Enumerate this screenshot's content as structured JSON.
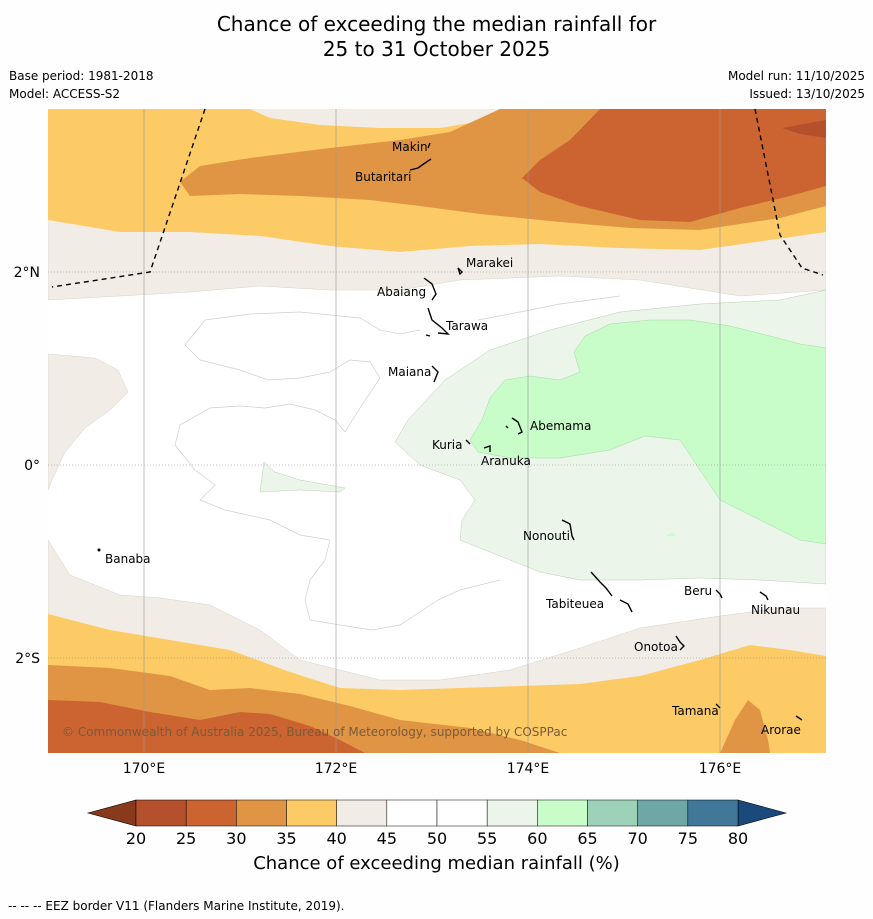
{
  "title": {
    "line1": "Chance of exceeding the median rainfall for",
    "line2": "25 to 31 October 2025"
  },
  "meta": {
    "base_period": "Base period: 1981-2018",
    "model": "Model: ACCESS-S2",
    "model_run": "Model run: 11/10/2025",
    "issued": "Issued: 13/10/2025"
  },
  "map": {
    "lon_labels": [
      "170°E",
      "172°E",
      "174°E",
      "176°E"
    ],
    "lat_labels": [
      "2°N",
      "0°",
      "2°S"
    ],
    "copyright": "© Commonwealth of Australia 2025, Bureau of Meteorology, supported by COSPPac",
    "places": [
      {
        "id": "makin",
        "name": "Makin"
      },
      {
        "id": "butaritari",
        "name": "Butaritari"
      },
      {
        "id": "marakei",
        "name": "Marakei"
      },
      {
        "id": "abaiang",
        "name": "Abaiang"
      },
      {
        "id": "tarawa",
        "name": "Tarawa"
      },
      {
        "id": "maiana",
        "name": "Maiana"
      },
      {
        "id": "abemama",
        "name": "Abemama"
      },
      {
        "id": "kuria",
        "name": "Kuria"
      },
      {
        "id": "aranuka",
        "name": "Aranuka"
      },
      {
        "id": "nonouti",
        "name": "Nonouti"
      },
      {
        "id": "banaba",
        "name": "Banaba"
      },
      {
        "id": "tabiteuea",
        "name": "Tabiteuea"
      },
      {
        "id": "beru",
        "name": "Beru"
      },
      {
        "id": "nikunau",
        "name": "Nikunau"
      },
      {
        "id": "onotoa",
        "name": "Onotoa"
      },
      {
        "id": "tamana",
        "name": "Tamana"
      },
      {
        "id": "arorae",
        "name": "Arorae"
      }
    ]
  },
  "colorbar": {
    "title": "Chance of exceeding median rainfall (%)",
    "ticks": [
      "20",
      "25",
      "30",
      "35",
      "40",
      "45",
      "50",
      "55",
      "60",
      "65",
      "70",
      "75",
      "80"
    ],
    "low_color": "#8a3a1c",
    "high_color": "#1a4a7c",
    "colors": [
      "#b5502c",
      "#cb6430",
      "#e09544",
      "#fccb66",
      "#f1ece6",
      "#ffffff",
      "#ffffff",
      "#ebf5ea",
      "#c8fcc8",
      "#9ed2b8",
      "#6fa6a6",
      "#41789a"
    ]
  },
  "footnote": "--  --  -- EEZ border V11 (Flanders Marine Institute, 2019)."
}
